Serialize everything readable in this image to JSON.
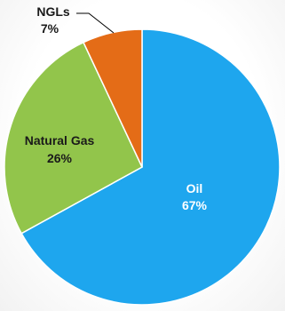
{
  "chart_data": {
    "type": "pie",
    "title": "",
    "slices": [
      {
        "label": "Oil",
        "value": 67,
        "value_label": "67%",
        "color": "#1ea6ee"
      },
      {
        "label": "Natural Gas",
        "value": 26,
        "value_label": "26%",
        "color": "#92c54b"
      },
      {
        "label": "NGLs",
        "value": 7,
        "value_label": "7%",
        "color": "#e46c17"
      }
    ],
    "start": "12 o'clock",
    "direction": "clockwise",
    "legend": "none"
  }
}
